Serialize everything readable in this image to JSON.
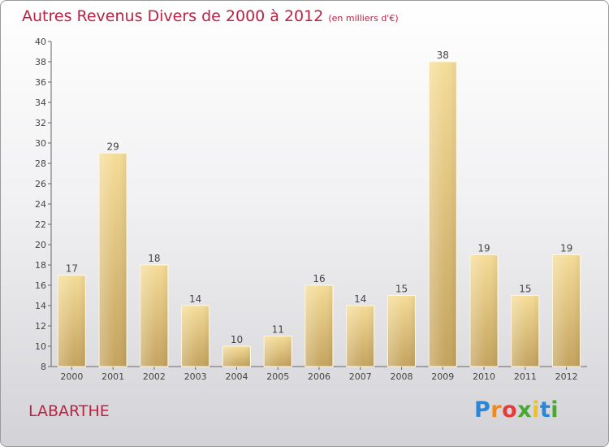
{
  "title": "Autres Revenus Divers de 2000 à 2012",
  "unit_label": "(en milliers d'€)",
  "location": "LABARTHE",
  "brand": {
    "letters": [
      "P",
      "r",
      "o",
      "x",
      "i",
      "t",
      "i"
    ],
    "colors": [
      "#2b86d6",
      "#f08a1c",
      "#e23d3d",
      "#4aa832",
      "#f0c020",
      "#2b86d6",
      "#4aa832"
    ]
  },
  "colors": {
    "bar_light": "#f5dc98",
    "bar_dark": "#c4a35e",
    "text": "#555555",
    "title": "#bb2244"
  },
  "chart_data": {
    "type": "bar",
    "categories": [
      "2000",
      "2001",
      "2002",
      "2003",
      "2004",
      "2005",
      "2006",
      "2007",
      "2008",
      "2009",
      "2010",
      "2011",
      "2012"
    ],
    "values": [
      17,
      29,
      18,
      14,
      10,
      11,
      16,
      14,
      15,
      38,
      19,
      15,
      19
    ],
    "data_labels": [
      "17",
      "29",
      "18",
      "14",
      "10",
      "11",
      "16",
      "14",
      "15",
      "38",
      "19",
      "15",
      "19"
    ],
    "ylim": [
      8,
      40
    ],
    "yticks": [
      8,
      10,
      12,
      14,
      16,
      18,
      20,
      22,
      24,
      26,
      28,
      30,
      32,
      34,
      36,
      38,
      40
    ],
    "grid": false,
    "legend": "none"
  }
}
